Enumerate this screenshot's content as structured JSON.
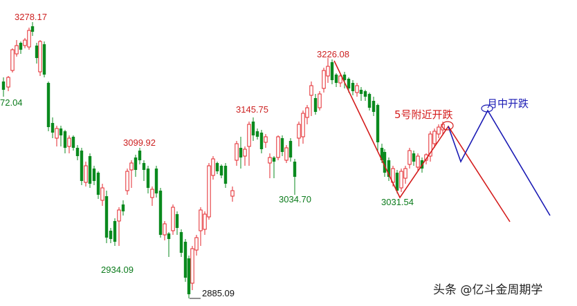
{
  "chart_data": {
    "type": "candlestick",
    "title": "",
    "colors": {
      "up": "#e3262b",
      "down": "#0a8a1e",
      "price_label_high": "#cc1f1f",
      "price_label_low": "#0a7a1a",
      "red_path": "#d41c1c",
      "blue_path": "#1a1ab4",
      "annotation_red": "#d41c1c",
      "annotation_blue": "#1a1ab4"
    },
    "price_labels": [
      {
        "text": "3278.17",
        "kind": "high"
      },
      {
        "text": "72.04",
        "kind": "low"
      },
      {
        "text": "3099.92",
        "kind": "high"
      },
      {
        "text": "2934.09",
        "kind": "low"
      },
      {
        "text": "2885.09",
        "kind": "low-black"
      },
      {
        "text": "3145.75",
        "kind": "high"
      },
      {
        "text": "3034.70",
        "kind": "low"
      },
      {
        "text": "3226.08",
        "kind": "high"
      },
      {
        "text": "3031.54",
        "kind": "low"
      }
    ],
    "annotations": {
      "red": "5号附近开跌",
      "blue": "月中开跌"
    },
    "watermark": "头条 @亿斗金周期学"
  }
}
